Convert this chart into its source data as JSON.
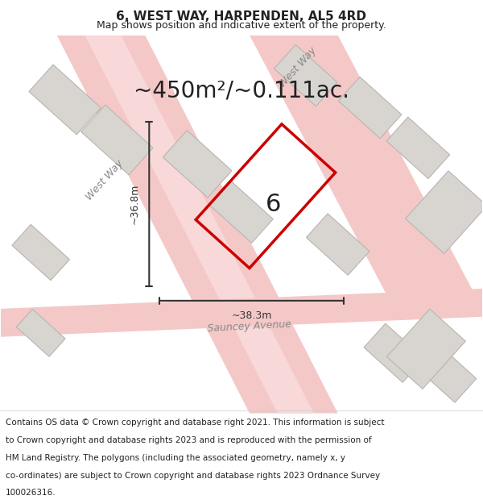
{
  "title": "6, WEST WAY, HARPENDEN, AL5 4RD",
  "subtitle": "Map shows position and indicative extent of the property.",
  "area_text": "~450m²/~0.111ac.",
  "number_label": "6",
  "dim_width": "~38.3m",
  "dim_height": "~36.8m",
  "footer": "Contains OS data © Crown copyright and database right 2021. This information is subject to Crown copyright and database rights 2023 and is reproduced with the permission of HM Land Registry. The polygons (including the associated geometry, namely x, y co-ordinates) are subject to Crown copyright and database rights 2023 Ordnance Survey 100026316.",
  "bg_color": "#f5f4f2",
  "map_bg": "#f0eeeb",
  "road_color_light": "#f5c8c8",
  "road_color_mid": "#e8a0a0",
  "building_color": "#d8d5d0",
  "building_edge": "#b8b5b0",
  "plot_color": "#e8e5e0",
  "plot_edge": "#cc0000",
  "dim_color": "#333333",
  "text_color": "#222222",
  "road_label_color": "#888888",
  "title_fontsize": 11,
  "subtitle_fontsize": 9,
  "area_fontsize": 18,
  "footer_fontsize": 7.5
}
